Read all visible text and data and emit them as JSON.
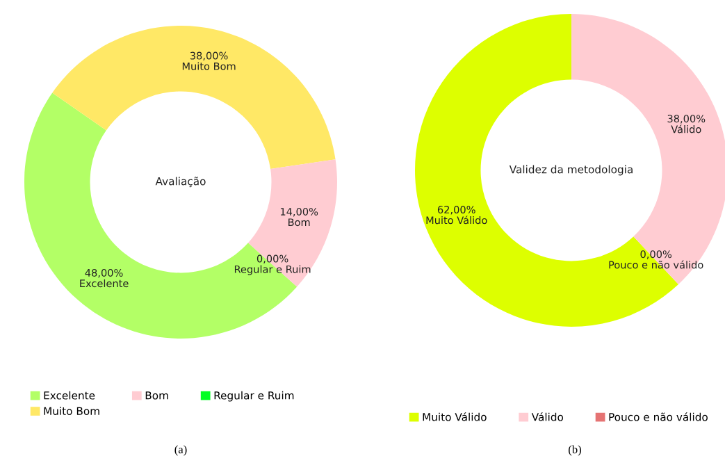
{
  "chart_data": [
    {
      "type": "donut",
      "title": "Avaliação",
      "categories": [
        "Excelente",
        "Muito Bom",
        "Bom",
        "Regular e Ruim"
      ],
      "values": [
        48,
        38,
        14,
        0
      ],
      "value_labels": [
        "48,00%",
        "38,00%",
        "14,00%",
        "0,00%"
      ],
      "colors": [
        "#b3ff66",
        "#ffe866",
        "#ffccd2",
        "#00ff22"
      ],
      "legend": "bottom",
      "annotations": [
        "(a)"
      ]
    },
    {
      "type": "donut",
      "title": "Validez da metodologia",
      "categories": [
        "Muito Válido",
        "Válido",
        "Pouco e não válido"
      ],
      "values": [
        62,
        38,
        0
      ],
      "value_labels": [
        "62,00%",
        "38,00%",
        "0,00%"
      ],
      "colors": [
        "#ddff00",
        "#ffccd2",
        "#e57373"
      ],
      "legend": "bottom",
      "annotations": [
        "(b)"
      ]
    }
  ]
}
